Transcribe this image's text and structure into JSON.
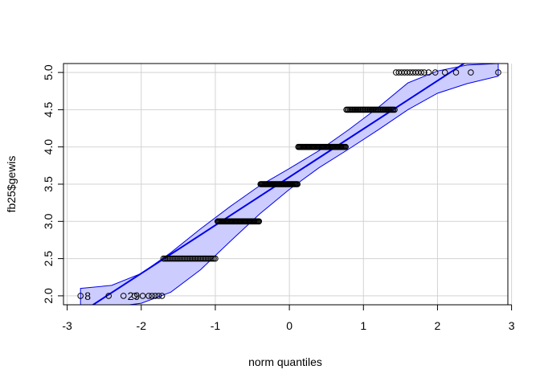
{
  "chart_data": {
    "type": "scatter",
    "title": "",
    "xlabel": "norm quantiles",
    "ylabel": "fb25$gewis",
    "xlim": [
      -3.05,
      2.95
    ],
    "ylim": [
      1.88,
      5.12
    ],
    "x_ticks": [
      -3,
      -2,
      -1,
      0,
      1,
      2,
      3
    ],
    "x_tick_labels": [
      "-3",
      "-2",
      "-1",
      "0",
      "1",
      "2",
      "3"
    ],
    "y_ticks": [
      2.0,
      2.5,
      3.0,
      3.5,
      4.0,
      4.5,
      5.0
    ],
    "y_tick_labels": [
      "2.0",
      "2.5",
      "3.0",
      "3.5",
      "4.0",
      "4.5",
      "5.0"
    ],
    "grid": true,
    "colors": {
      "line": "#0000ee",
      "band_fill": "#ccccff",
      "band_edge": "#0000ee",
      "points": "#000000",
      "grid": "#d3d3d3"
    },
    "reference_line": {
      "slope": 0.647,
      "intercept": 3.595
    },
    "confidence_band": {
      "x": [
        -2.82,
        -2.4,
        -2.0,
        -1.6,
        -1.2,
        -0.8,
        -0.4,
        0.0,
        0.4,
        0.8,
        1.2,
        1.6,
        2.0,
        2.4,
        2.82
      ],
      "upper": [
        2.1,
        2.14,
        2.3,
        2.58,
        2.9,
        3.2,
        3.48,
        3.71,
        3.95,
        4.23,
        4.53,
        4.86,
        5.02,
        5.1,
        5.12
      ],
      "lower": [
        1.82,
        1.85,
        1.9,
        2.05,
        2.35,
        2.73,
        3.1,
        3.43,
        3.72,
        3.97,
        4.23,
        4.5,
        4.72,
        4.85,
        4.95
      ]
    },
    "point_groups": [
      {
        "y": 2.0,
        "x_from": -1.9,
        "x_to": -1.72,
        "count": 5
      },
      {
        "y": 2.5,
        "x_from": -1.7,
        "x_to": -1.0,
        "count": 34
      },
      {
        "y": 3.0,
        "x_from": -0.97,
        "x_to": -0.41,
        "count": 48
      },
      {
        "y": 3.5,
        "x_from": -0.39,
        "x_to": 0.11,
        "count": 46
      },
      {
        "y": 4.0,
        "x_from": 0.12,
        "x_to": 0.76,
        "count": 55
      },
      {
        "y": 4.5,
        "x_from": 0.77,
        "x_to": 1.42,
        "count": 42
      },
      {
        "y": 5.0,
        "x_from": 1.44,
        "x_to": 1.82,
        "count": 11
      }
    ],
    "individual_points": [
      {
        "x": -2.82,
        "y": 2.0
      },
      {
        "x": -2.44,
        "y": 2.0
      },
      {
        "x": -2.24,
        "y": 2.0
      },
      {
        "x": -2.09,
        "y": 2.0
      },
      {
        "x": -1.98,
        "y": 2.0
      },
      {
        "x": 1.88,
        "y": 5.0
      },
      {
        "x": 1.97,
        "y": 5.0
      },
      {
        "x": 2.1,
        "y": 5.0
      },
      {
        "x": 2.25,
        "y": 5.0
      },
      {
        "x": 2.45,
        "y": 5.0
      },
      {
        "x": 2.82,
        "y": 5.0
      }
    ],
    "point_labels": [
      {
        "text": "8",
        "x": -2.82,
        "y": 2.0
      },
      {
        "text": "29",
        "x": -2.24,
        "y": 2.0
      }
    ]
  }
}
